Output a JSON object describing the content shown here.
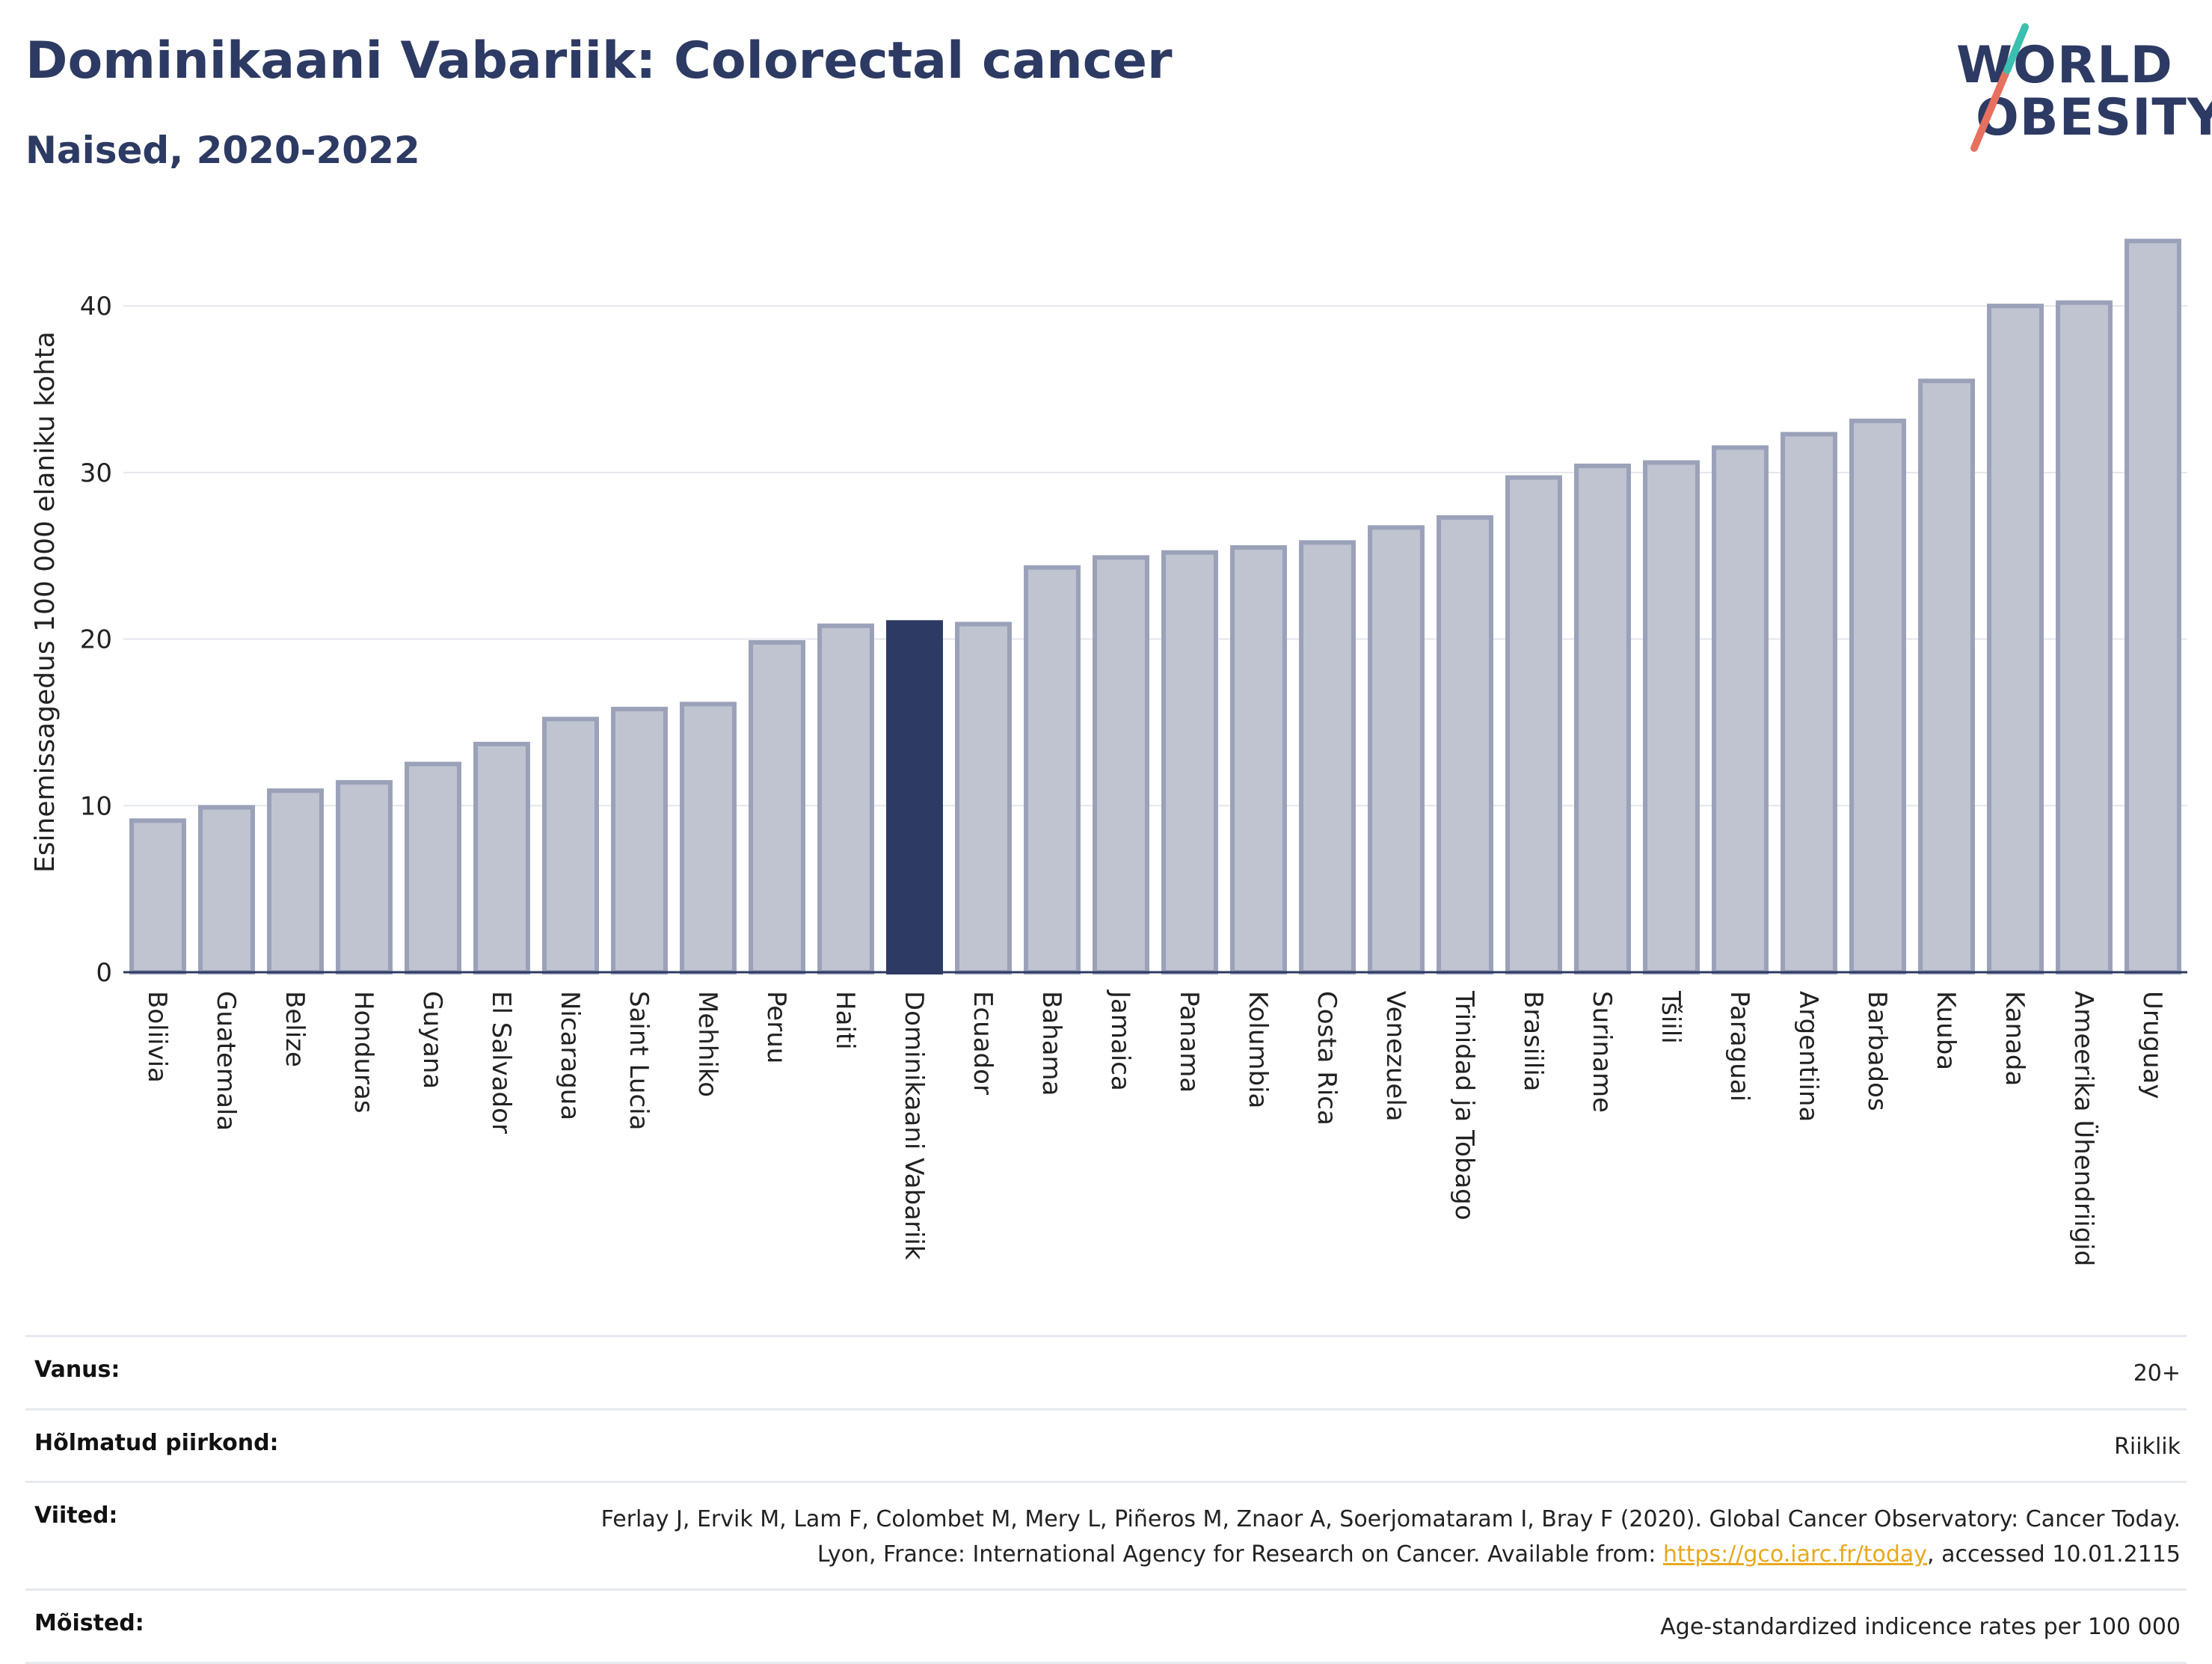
{
  "header": {
    "title": "Dominikaani Vabariik: Colorectal cancer",
    "subtitle": "Naised, 2020-2022"
  },
  "logo": {
    "line1": "WORLD",
    "line2": "OBESITY",
    "colors": {
      "text": "#2d3a63",
      "teal": "#3bbfae",
      "coral": "#e8705f"
    }
  },
  "colors": {
    "bar": "#c0c4d1",
    "bar_stroke": "#9aa1b8",
    "highlight": "#2d3a63",
    "grid": "#e4e6ec",
    "axis": "#2d3a63"
  },
  "chart_data": {
    "type": "bar",
    "title": "Dominikaani Vabariik: Colorectal cancer",
    "subtitle": "Naised, 2020-2022",
    "ylabel": "Esinemissagedus 100 000 elaniku kohta",
    "xlabel": "",
    "ylim": [
      0,
      44
    ],
    "yticks": [
      0,
      10,
      20,
      30,
      40
    ],
    "grid": true,
    "highlight": "Dominikaani Vabariik",
    "categories": [
      "Boliivia",
      "Guatemala",
      "Belize",
      "Honduras",
      "Guyana",
      "El Salvador",
      "Nicaragua",
      "Saint Lucia",
      "Mehhiko",
      "Peruu",
      "Haiti",
      "Dominikaani Vabariik",
      "Ecuador",
      "Bahama",
      "Jamaica",
      "Panama",
      "Kolumbia",
      "Costa Rica",
      "Venezuela",
      "Trinidad ja Tobago",
      "Brasiilia",
      "Suriname",
      "Tšiili",
      "Paraguai",
      "Argentiina",
      "Barbados",
      "Kuuba",
      "Kanada",
      "Ameerika Ühendriigid",
      "Uruguay"
    ],
    "values": [
      9.1,
      9.9,
      10.9,
      11.4,
      12.5,
      13.7,
      15.2,
      15.8,
      16.1,
      19.8,
      20.8,
      21.0,
      20.9,
      24.3,
      24.9,
      25.2,
      25.5,
      25.8,
      26.7,
      27.3,
      29.7,
      30.4,
      30.6,
      31.5,
      32.3,
      33.1,
      35.5,
      40.0,
      40.2,
      43.9
    ]
  },
  "meta": {
    "rows": [
      {
        "label": "Vanus:",
        "value": "20+"
      },
      {
        "label": "Hõlmatud piirkond:",
        "value": "Riiklik"
      },
      {
        "label": "Viited:",
        "value": "Ferlay J, Ervik M, Lam F, Colombet M, Mery L, Piñeros M, Znaor A, Soerjomataram I, Bray F (2020). Global Cancer Observatory: Cancer Today. Lyon, France: International Agency for Research on Cancer. Available from: ",
        "link": "https://gco.iarc.fr/today",
        "suffix": ", accessed 10.01.2115"
      },
      {
        "label": "Mõisted:",
        "value": "Age-standardized indicence rates per 100 000"
      }
    ]
  }
}
